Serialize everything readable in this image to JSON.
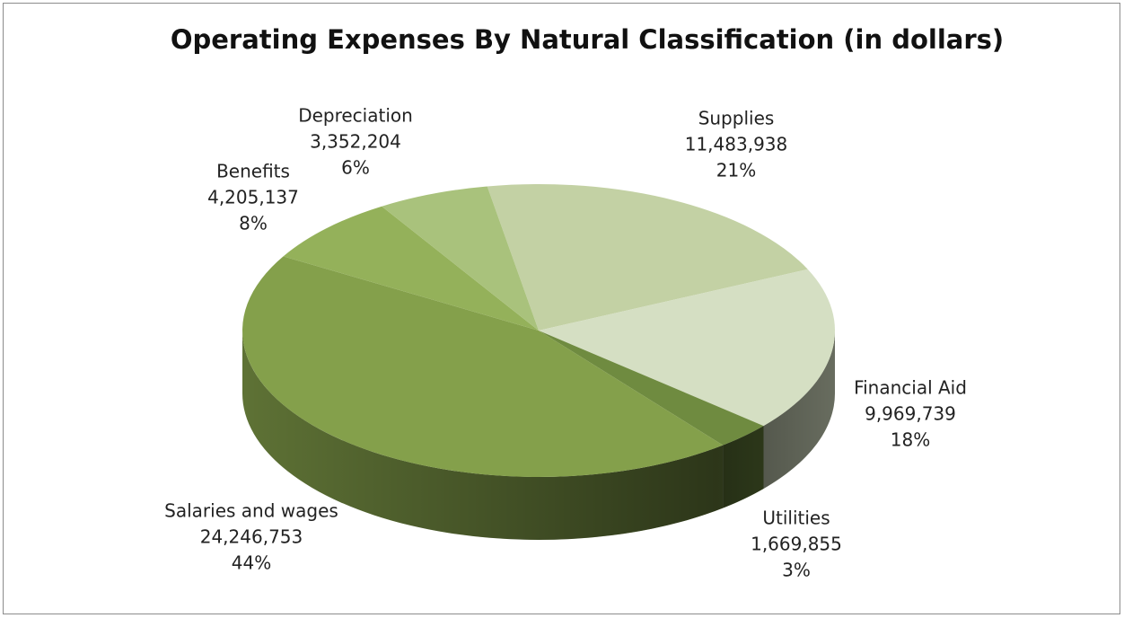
{
  "chart_data": {
    "type": "pie3d",
    "title": "Operating Expenses By Natural Classification (in dollars)",
    "categories": [
      "Supplies",
      "Financial Aid",
      "Utilities",
      "Salaries and wages",
      "Benefits",
      "Depreciation"
    ],
    "values": [
      11483938,
      9969739,
      1669855,
      24246753,
      4205137,
      3352204
    ],
    "value_labels": [
      "11,483,938",
      "9,969,739",
      "1,669,855",
      "24,246,753",
      "4,205,137",
      "3,352,204"
    ],
    "percent_labels": [
      "21%",
      "18%",
      "3%",
      "44%",
      "8%",
      "6%"
    ],
    "colors": [
      "#c3d1a4",
      "#d5dfc3",
      "#6f8b40",
      "#84a04b",
      "#94b15a",
      "#a9c27c"
    ]
  }
}
